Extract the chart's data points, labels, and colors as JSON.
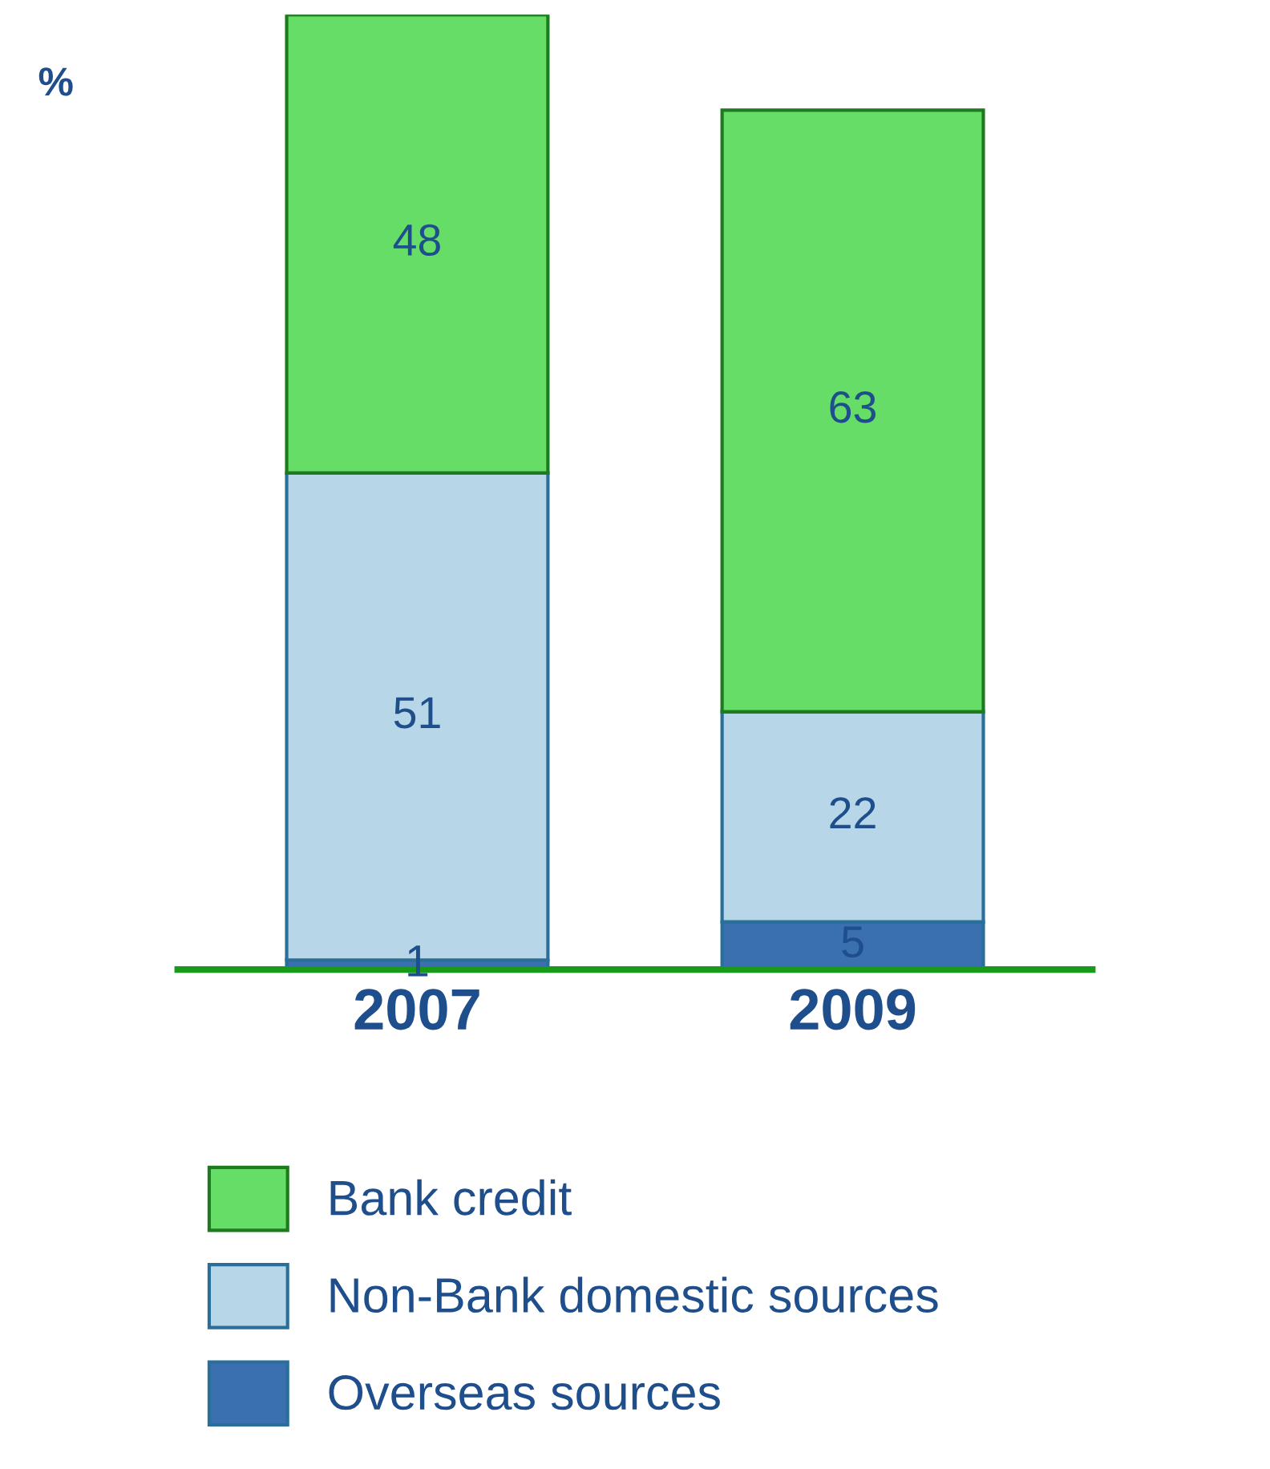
{
  "chart_data": {
    "type": "bar",
    "stacked": true,
    "ylabel": "%",
    "categories": [
      "2007",
      "2009"
    ],
    "series": [
      {
        "name": "Overseas sources",
        "color": "#3a6fb0",
        "values": [
          1,
          5
        ]
      },
      {
        "name": "Non-Bank domestic sources",
        "color": "#b7d6e8",
        "values": [
          51,
          22
        ]
      },
      {
        "name": "Bank credit",
        "color": "#66dd66",
        "values": [
          48,
          63
        ]
      }
    ],
    "data_labels": true,
    "legend": "bottom",
    "tick_labels": "x",
    "grid": false
  }
}
